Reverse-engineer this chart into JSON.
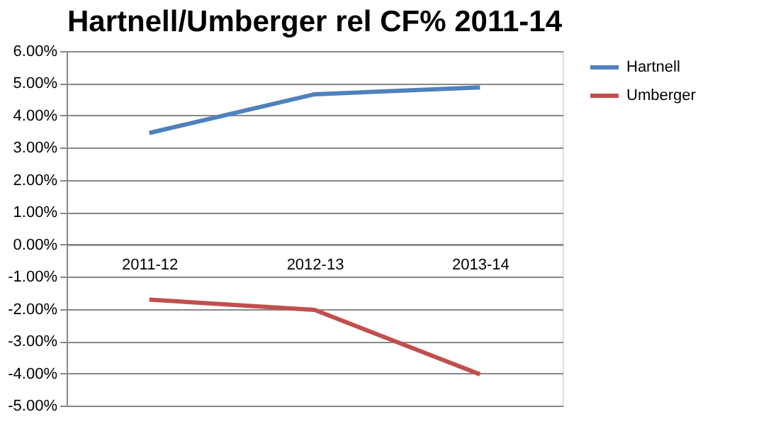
{
  "chart_data": {
    "type": "line",
    "title": "Hartnell/Umberger rel CF% 2011-14",
    "categories": [
      "2011-12",
      "2012-13",
      "2013-14"
    ],
    "series": [
      {
        "name": "Hartnell",
        "color": "#4f81bd",
        "values": [
          3.46,
          4.66,
          4.87
        ]
      },
      {
        "name": "Umberger",
        "color": "#c0504d",
        "values": [
          -1.71,
          -2.03,
          -4.03
        ]
      }
    ],
    "ylim": [
      -5,
      6
    ],
    "yticks": [
      {
        "value": -5,
        "label": "-5.00%"
      },
      {
        "value": -4,
        "label": "-4.00%"
      },
      {
        "value": -3,
        "label": "-3.00%"
      },
      {
        "value": -2,
        "label": "-2.00%"
      },
      {
        "value": -1,
        "label": "-1.00%"
      },
      {
        "value": 0,
        "label": "0.00%"
      },
      {
        "value": 1,
        "label": "1.00%"
      },
      {
        "value": 2,
        "label": "2.00%"
      },
      {
        "value": 3,
        "label": "3.00%"
      },
      {
        "value": 4,
        "label": "4.00%"
      },
      {
        "value": 5,
        "label": "5.00%"
      },
      {
        "value": 6,
        "label": "6.00%"
      }
    ],
    "grid": "y",
    "legend": "right",
    "marker": "none",
    "line_style": "solid"
  }
}
